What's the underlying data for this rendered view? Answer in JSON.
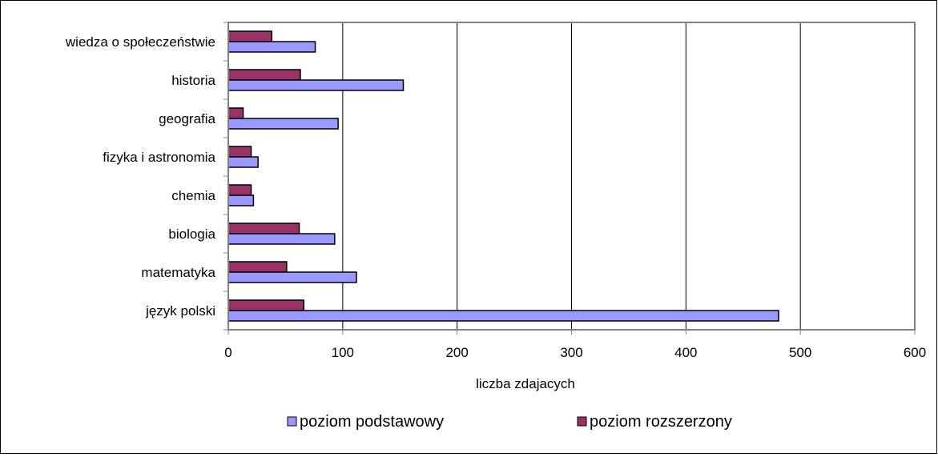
{
  "chart_data": {
    "type": "bar",
    "orientation": "horizontal",
    "categories": [
      "wiedza o społeczeństwie",
      "historia",
      "geografia",
      "fizyka i astronomia",
      "chemia",
      "biologia",
      "matematyka",
      "język polski"
    ],
    "series": [
      {
        "name": "poziom podstawowy",
        "color": "#9999ff",
        "values": [
          76,
          153,
          96,
          26,
          22,
          93,
          112,
          481
        ]
      },
      {
        "name": "poziom rozszerzony",
        "color": "#993366",
        "values": [
          38,
          63,
          13,
          20,
          20,
          62,
          51,
          66
        ]
      }
    ],
    "xlabel": "liczba zdajacych",
    "ylabel": "",
    "xlim": [
      0,
      600
    ],
    "xticks": [
      0,
      100,
      200,
      300,
      400,
      500,
      600
    ],
    "grid": true,
    "legend_position": "bottom",
    "plot_background": "#ffffff",
    "grid_color": "#000000",
    "axis_color": "#808080"
  }
}
